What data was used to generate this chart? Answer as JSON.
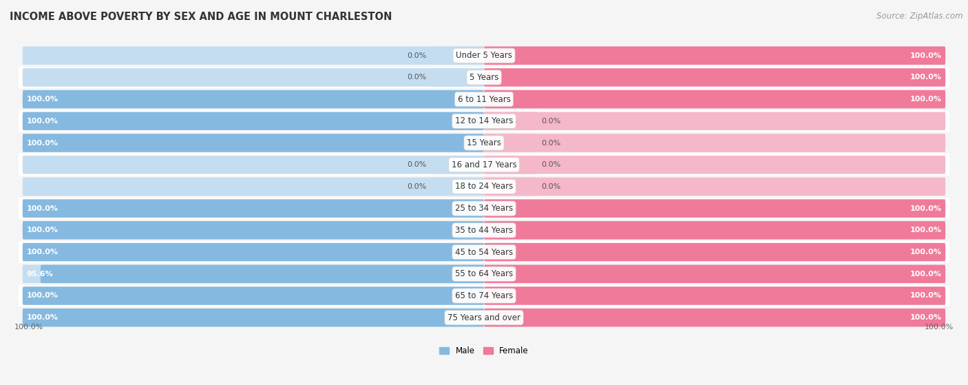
{
  "title": "INCOME ABOVE POVERTY BY SEX AND AGE IN MOUNT CHARLESTON",
  "source": "Source: ZipAtlas.com",
  "categories": [
    "Under 5 Years",
    "5 Years",
    "6 to 11 Years",
    "12 to 14 Years",
    "15 Years",
    "16 and 17 Years",
    "18 to 24 Years",
    "25 to 34 Years",
    "35 to 44 Years",
    "45 to 54 Years",
    "55 to 64 Years",
    "65 to 74 Years",
    "75 Years and over"
  ],
  "male_values": [
    0.0,
    0.0,
    100.0,
    100.0,
    100.0,
    0.0,
    0.0,
    100.0,
    100.0,
    100.0,
    95.6,
    100.0,
    100.0
  ],
  "female_values": [
    100.0,
    100.0,
    100.0,
    0.0,
    0.0,
    0.0,
    0.0,
    100.0,
    100.0,
    100.0,
    100.0,
    100.0,
    100.0
  ],
  "male_color": "#85b9e0",
  "female_color": "#f07a9a",
  "male_color_light": "#c5ddf0",
  "female_color_light": "#f5b8c8",
  "male_label": "Male",
  "female_label": "Female",
  "bg_row_odd": "#f5f5f5",
  "bg_row_even": "#ffffff",
  "title_fontsize": 10.5,
  "label_fontsize": 8.5,
  "value_fontsize": 8.0,
  "source_fontsize": 8.5,
  "max_val": 100.0
}
